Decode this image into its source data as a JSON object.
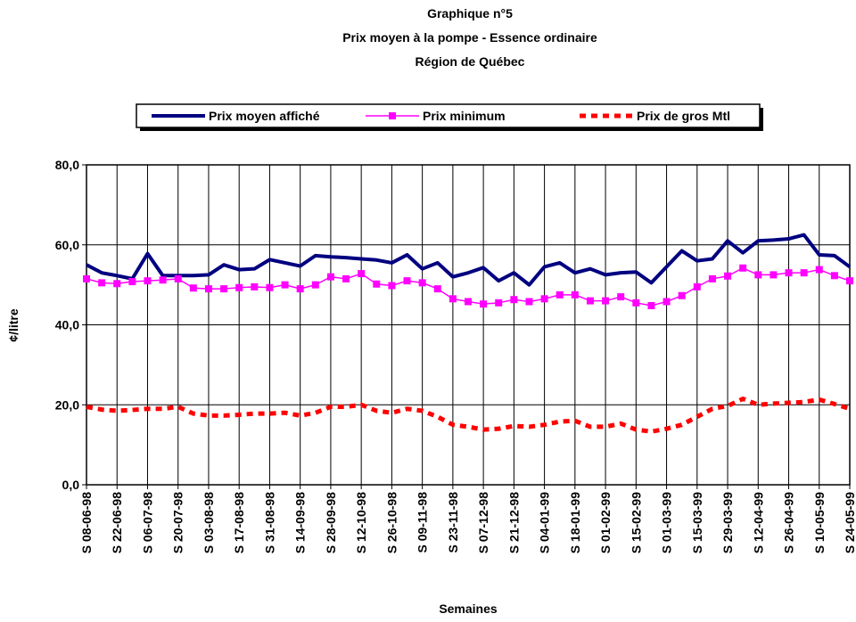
{
  "chart_data": {
    "type": "line",
    "title": [
      "Graphique n°5",
      "Prix moyen à la pompe - Essence ordinaire",
      "Région de Québec"
    ],
    "x_label": "Semaines",
    "y_label": "¢/litre",
    "categories": [
      "S 08-06-98",
      null,
      "S 22-06-98",
      null,
      "S 06-07-98",
      null,
      "S 20-07-98",
      null,
      "S 03-08-98",
      null,
      "S 17-08-98",
      null,
      "S 31-08-98",
      null,
      "S 14-09-98",
      null,
      "S 28-09-98",
      null,
      "S 12-10-98",
      null,
      "S 26-10-98",
      null,
      "S 09-11-98",
      null,
      "S 23-11-98",
      null,
      "S 07-12-98",
      null,
      "S 21-12-98",
      null,
      "S 04-01-99",
      null,
      "S 18-01-99",
      null,
      "S 01-02-99",
      null,
      "S 15-02-99",
      null,
      "S 01-03-99",
      null,
      "S 15-03-99",
      null,
      "S 29-03-99",
      null,
      "S 12-04-99",
      null,
      "S 26-04-99",
      null,
      "S 10-05-99",
      null,
      "S 24-05-99"
    ],
    "series": [
      {
        "name": "Prix moyen affiché",
        "color": "#000080",
        "values": [
          55.0,
          53.0,
          52.3,
          51.5,
          57.8,
          52.3,
          52.3,
          52.3,
          52.5,
          55.0,
          53.8,
          54.0,
          56.3,
          55.5,
          54.7,
          57.3,
          57.0,
          56.8,
          56.5,
          56.2,
          55.5,
          57.5,
          54.0,
          55.5,
          52.0,
          53.0,
          54.3,
          51.0,
          53.0,
          50.0,
          54.5,
          55.5,
          53.0,
          54.0,
          52.5,
          53.0,
          53.2,
          50.5,
          54.5,
          58.5,
          56.0,
          56.5,
          61.0,
          58.0,
          61.0,
          61.2,
          61.5,
          62.5,
          57.5,
          57.3,
          54.5
        ]
      },
      {
        "name": "Prix minimum",
        "color": "#ff00ff",
        "values": [
          51.5,
          50.5,
          50.3,
          50.8,
          51.0,
          51.2,
          51.5,
          49.2,
          49.0,
          49.0,
          49.3,
          49.5,
          49.3,
          50.0,
          49.0,
          50.0,
          52.0,
          51.5,
          52.8,
          50.2,
          49.8,
          51.0,
          50.5,
          49.0,
          46.5,
          45.8,
          45.2,
          45.5,
          46.3,
          45.8,
          46.5,
          47.5,
          47.5,
          46.0,
          46.0,
          47.0,
          45.5,
          44.8,
          45.8,
          47.3,
          49.5,
          51.5,
          52.2,
          54.2,
          52.5,
          52.5,
          53.0,
          53.0,
          53.8,
          52.3,
          51.0
        ]
      },
      {
        "name": "Prix de gros Mtl",
        "color": "#ff0000",
        "values": [
          19.5,
          18.8,
          18.5,
          18.7,
          19.0,
          19.0,
          19.5,
          17.8,
          17.3,
          17.3,
          17.5,
          17.8,
          17.8,
          18.0,
          17.3,
          18.0,
          19.5,
          19.5,
          20.0,
          18.5,
          18.0,
          19.0,
          18.5,
          17.0,
          15.0,
          14.5,
          13.8,
          14.0,
          14.7,
          14.5,
          15.0,
          15.8,
          16.0,
          14.5,
          14.5,
          15.3,
          13.8,
          13.3,
          14.0,
          15.0,
          17.0,
          19.0,
          19.7,
          21.5,
          20.0,
          20.3,
          20.5,
          20.7,
          21.3,
          20.2,
          19.0
        ]
      }
    ],
    "ylim": [
      0,
      80
    ],
    "yticks": [
      {
        "value": 0,
        "label": "0,0"
      },
      {
        "value": 20,
        "label": "20,0"
      },
      {
        "value": 40,
        "label": "40,0"
      },
      {
        "value": 60,
        "label": "60,0"
      },
      {
        "value": 80,
        "label": "80,0"
      }
    ],
    "grid": true,
    "legend": "top"
  }
}
